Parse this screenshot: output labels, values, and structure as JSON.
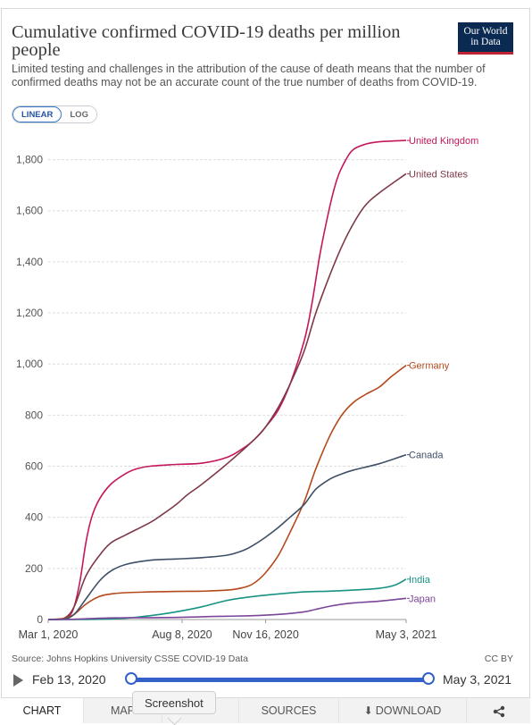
{
  "header": {
    "title": "Cumulative confirmed COVID-19 deaths per million people",
    "subtitle": "Limited testing and challenges in the attribution of the cause of death means that the number of confirmed deaths may not be an accurate count of the true number of deaths from COVID-19.",
    "logo_line1": "Our World",
    "logo_line2": "in Data"
  },
  "scale_toggle": {
    "linear_label": "LINEAR",
    "log_label": "LOG",
    "selected": "LINEAR"
  },
  "footer": {
    "source": "Source: Johns Hopkins University CSSE COVID-19 Data",
    "license": "CC BY",
    "start_date": "Feb 13, 2020",
    "end_date": "May 3, 2021"
  },
  "tabs": [
    {
      "label": "CHART"
    },
    {
      "label": "MAP"
    },
    {
      "label": ""
    },
    {
      "label": "SOURCES"
    },
    {
      "label": "DOWNLOAD"
    },
    {
      "label": ""
    }
  ],
  "tooltip": "Screenshot",
  "colors": {
    "United Kingdom": "#c4175c",
    "United States": "#7d3a46",
    "Germany": "#b4491c",
    "Canada": "#3e4f66",
    "India": "#179384",
    "Japan": "#7b459a"
  },
  "chart_data": {
    "type": "line",
    "title": "Cumulative confirmed COVID-19 deaths per million people",
    "xlabel": "",
    "ylabel": "",
    "x_ticks": [
      "Mar 1, 2020",
      "Aug 8, 2020",
      "Nov 16, 2020",
      "May 3, 2021"
    ],
    "y_ticks": [
      0,
      200,
      400,
      600,
      800,
      1000,
      1200,
      1400,
      1600,
      1800
    ],
    "y_tick_labels": [
      "0",
      "200",
      "400",
      "600",
      "800",
      "1,000",
      "1,200",
      "1,400",
      "1,600",
      "1,800"
    ],
    "xlim": [
      "2020-03-01",
      "2021-05-03"
    ],
    "ylim": [
      0,
      1900
    ],
    "grid": true,
    "legend": "inline-right",
    "series": [
      {
        "name": "United Kingdom",
        "points": [
          [
            "2020-03-01",
            0
          ],
          [
            "2020-03-15",
            1
          ],
          [
            "2020-03-25",
            10
          ],
          [
            "2020-04-01",
            50
          ],
          [
            "2020-04-08",
            150
          ],
          [
            "2020-04-15",
            300
          ],
          [
            "2020-04-22",
            400
          ],
          [
            "2020-05-01",
            470
          ],
          [
            "2020-05-15",
            530
          ],
          [
            "2020-06-01",
            570
          ],
          [
            "2020-06-15",
            590
          ],
          [
            "2020-07-01",
            600
          ],
          [
            "2020-08-01",
            607
          ],
          [
            "2020-09-01",
            612
          ],
          [
            "2020-10-01",
            635
          ],
          [
            "2020-10-20",
            670
          ],
          [
            "2020-11-01",
            700
          ],
          [
            "2020-11-15",
            750
          ],
          [
            "2020-12-01",
            820
          ],
          [
            "2020-12-15",
            920
          ],
          [
            "2021-01-01",
            1090
          ],
          [
            "2021-01-10",
            1230
          ],
          [
            "2021-01-20",
            1430
          ],
          [
            "2021-02-01",
            1620
          ],
          [
            "2021-02-10",
            1730
          ],
          [
            "2021-02-20",
            1800
          ],
          [
            "2021-03-01",
            1840
          ],
          [
            "2021-03-15",
            1860
          ],
          [
            "2021-04-01",
            1870
          ],
          [
            "2021-05-03",
            1875
          ]
        ]
      },
      {
        "name": "United States",
        "points": [
          [
            "2020-03-01",
            0
          ],
          [
            "2020-03-20",
            5
          ],
          [
            "2020-04-01",
            50
          ],
          [
            "2020-04-15",
            170
          ],
          [
            "2020-05-01",
            250
          ],
          [
            "2020-05-15",
            300
          ],
          [
            "2020-06-01",
            330
          ],
          [
            "2020-07-01",
            380
          ],
          [
            "2020-07-15",
            410
          ],
          [
            "2020-08-01",
            450
          ],
          [
            "2020-08-15",
            490
          ],
          [
            "2020-09-01",
            530
          ],
          [
            "2020-10-01",
            610
          ],
          [
            "2020-11-01",
            700
          ],
          [
            "2020-11-15",
            750
          ],
          [
            "2020-12-01",
            830
          ],
          [
            "2020-12-15",
            920
          ],
          [
            "2021-01-01",
            1050
          ],
          [
            "2021-01-15",
            1200
          ],
          [
            "2021-02-01",
            1350
          ],
          [
            "2021-02-15",
            1460
          ],
          [
            "2021-03-01",
            1550
          ],
          [
            "2021-03-15",
            1620
          ],
          [
            "2021-04-01",
            1670
          ],
          [
            "2021-05-03",
            1745
          ]
        ]
      },
      {
        "name": "Germany",
        "points": [
          [
            "2020-03-01",
            0
          ],
          [
            "2020-03-20",
            5
          ],
          [
            "2020-04-01",
            20
          ],
          [
            "2020-04-15",
            60
          ],
          [
            "2020-05-01",
            90
          ],
          [
            "2020-05-15",
            100
          ],
          [
            "2020-06-01",
            105
          ],
          [
            "2020-07-01",
            108
          ],
          [
            "2020-08-01",
            110
          ],
          [
            "2020-09-01",
            111
          ],
          [
            "2020-10-01",
            115
          ],
          [
            "2020-10-20",
            125
          ],
          [
            "2020-11-01",
            140
          ],
          [
            "2020-11-15",
            180
          ],
          [
            "2020-12-01",
            250
          ],
          [
            "2020-12-15",
            340
          ],
          [
            "2021-01-01",
            460
          ],
          [
            "2021-01-15",
            590
          ],
          [
            "2021-02-01",
            720
          ],
          [
            "2021-02-15",
            800
          ],
          [
            "2021-03-01",
            850
          ],
          [
            "2021-03-15",
            880
          ],
          [
            "2021-04-01",
            910
          ],
          [
            "2021-04-15",
            950
          ],
          [
            "2021-05-03",
            995
          ]
        ]
      },
      {
        "name": "Canada",
        "points": [
          [
            "2020-03-01",
            0
          ],
          [
            "2020-03-20",
            2
          ],
          [
            "2020-04-01",
            20
          ],
          [
            "2020-04-15",
            80
          ],
          [
            "2020-05-01",
            150
          ],
          [
            "2020-05-15",
            190
          ],
          [
            "2020-06-01",
            215
          ],
          [
            "2020-07-01",
            232
          ],
          [
            "2020-08-01",
            237
          ],
          [
            "2020-09-01",
            242
          ],
          [
            "2020-10-01",
            252
          ],
          [
            "2020-10-20",
            270
          ],
          [
            "2020-11-01",
            290
          ],
          [
            "2020-11-15",
            320
          ],
          [
            "2020-12-01",
            360
          ],
          [
            "2020-12-15",
            400
          ],
          [
            "2021-01-01",
            450
          ],
          [
            "2021-01-15",
            510
          ],
          [
            "2021-02-01",
            550
          ],
          [
            "2021-02-15",
            570
          ],
          [
            "2021-03-01",
            585
          ],
          [
            "2021-04-01",
            610
          ],
          [
            "2021-05-03",
            645
          ]
        ]
      },
      {
        "name": "India",
        "points": [
          [
            "2020-03-01",
            0
          ],
          [
            "2020-04-15",
            0.5
          ],
          [
            "2020-05-01",
            1
          ],
          [
            "2020-06-01",
            5
          ],
          [
            "2020-07-01",
            15
          ],
          [
            "2020-08-01",
            30
          ],
          [
            "2020-09-01",
            50
          ],
          [
            "2020-10-01",
            75
          ],
          [
            "2020-11-01",
            90
          ],
          [
            "2020-12-01",
            100
          ],
          [
            "2021-01-01",
            108
          ],
          [
            "2021-02-01",
            111
          ],
          [
            "2021-03-01",
            115
          ],
          [
            "2021-04-01",
            122
          ],
          [
            "2021-04-20",
            135
          ],
          [
            "2021-05-03",
            158
          ]
        ]
      },
      {
        "name": "Japan",
        "points": [
          [
            "2020-03-01",
            0
          ],
          [
            "2020-04-01",
            1
          ],
          [
            "2020-05-01",
            5
          ],
          [
            "2020-06-01",
            7
          ],
          [
            "2020-08-01",
            8
          ],
          [
            "2020-09-01",
            11
          ],
          [
            "2020-10-01",
            13
          ],
          [
            "2020-11-01",
            15
          ],
          [
            "2020-12-01",
            20
          ],
          [
            "2021-01-01",
            30
          ],
          [
            "2021-01-15",
            40
          ],
          [
            "2021-02-01",
            52
          ],
          [
            "2021-02-15",
            60
          ],
          [
            "2021-03-01",
            65
          ],
          [
            "2021-04-01",
            72
          ],
          [
            "2021-05-03",
            83
          ]
        ]
      }
    ]
  }
}
